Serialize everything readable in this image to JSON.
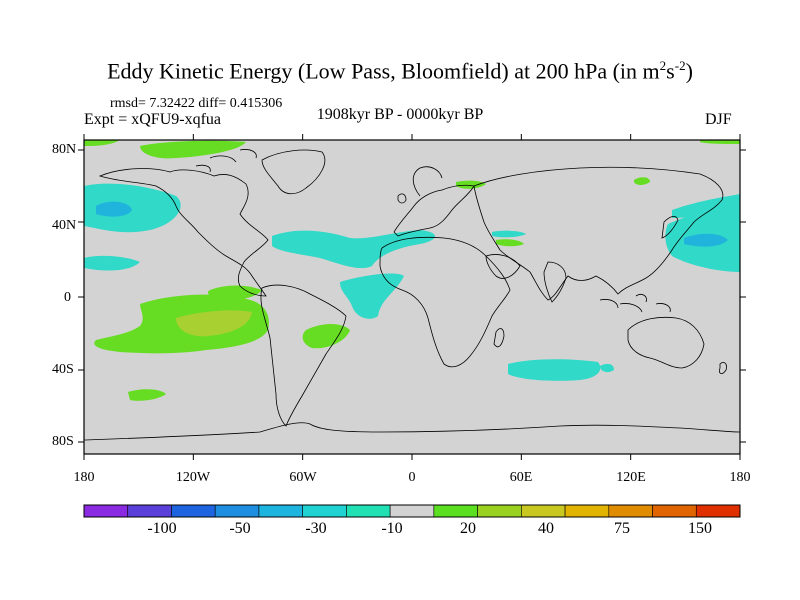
{
  "title": {
    "main": "Eddy Kinetic Energy (Low Pass, Bloomfield) at 200 hPa (in m",
    "sup1": "2",
    "mid": "s",
    "sup2": "-2",
    "end": ")"
  },
  "stats": "rmsd= 7.32422 diff= 0.415306",
  "expt": "Expt = xQFU9-xqfua",
  "period": "1908kyr BP - 0000kyr BP",
  "season": "DJF",
  "map": {
    "y_labels": [
      "80N",
      "40N",
      "0",
      "40S",
      "80S"
    ],
    "x_labels": [
      "180",
      "120W",
      "60W",
      "0",
      "60E",
      "120E",
      "180"
    ],
    "ocean_color": "#d3d3d3",
    "coast_color": "#000000"
  },
  "colorbar": {
    "labels": [
      "-100",
      "-50",
      "-30",
      "-10",
      "20",
      "40",
      "75",
      "150"
    ],
    "colors": [
      "#8a2be2",
      "#5a3fd8",
      "#1e64e0",
      "#1e8fe0",
      "#1eb4e0",
      "#20d2d2",
      "#20e0b4",
      "#d3d3d3",
      "#5ae020",
      "#9ad020",
      "#c8c820",
      "#e0b400",
      "#e08c00",
      "#e06400",
      "#e03000"
    ]
  },
  "anomalies": [
    {
      "name": "north-pacific-negative",
      "color": "#30d9c8"
    },
    {
      "name": "north-atlantic-negative",
      "color": "#30d9c8"
    },
    {
      "name": "west-pacific-negative",
      "color": "#30d9c8"
    },
    {
      "name": "southern-indian-negative",
      "color": "#30d9c8"
    },
    {
      "name": "south-pacific-positive",
      "color": "#66dd22"
    },
    {
      "name": "south-pacific-core",
      "color": "#a8d030"
    }
  ]
}
